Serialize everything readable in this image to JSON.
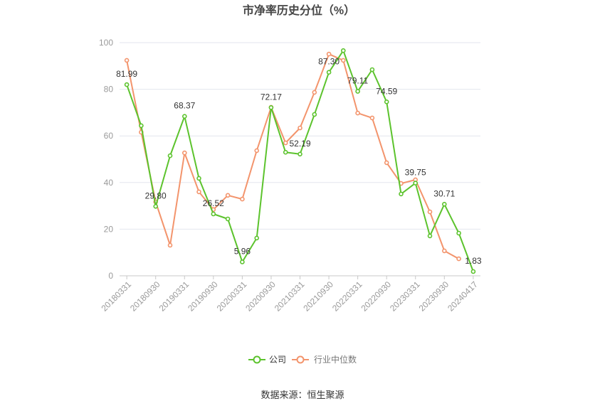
{
  "chart_data": {
    "type": "line",
    "title": "市净率历史分位（%）",
    "x_tick_labels": [
      "20180331",
      "20180930",
      "20190331",
      "20190930",
      "20200331",
      "20200930",
      "20210331",
      "20210930",
      "20220331",
      "20220930",
      "20230331",
      "20230930",
      "20240417"
    ],
    "y_ticks": [
      0,
      20,
      40,
      60,
      80,
      100
    ],
    "ylim": [
      0,
      100
    ],
    "grid": "horizontal",
    "legend_position": "bottom",
    "series": [
      {
        "name": "公司",
        "color": "#5cc32d",
        "values": [
          81.99,
          64.4,
          29.8,
          51.5,
          68.37,
          41.8,
          26.52,
          24.4,
          5.96,
          16.2,
          72.17,
          53.0,
          52.19,
          69.2,
          87.3,
          96.6,
          79.11,
          88.4,
          74.59,
          35.1,
          39.75,
          17.1,
          30.71,
          18.3,
          1.83
        ],
        "labels": [
          "81.99",
          null,
          "29.80",
          null,
          "68.37",
          null,
          "26.52",
          null,
          "5.96",
          null,
          "72.17",
          null,
          "52.19",
          null,
          "87.30",
          null,
          "79.11",
          null,
          "74.59",
          null,
          "39.75",
          null,
          "30.71",
          null,
          "1.83"
        ]
      },
      {
        "name": "行业中位数",
        "color": "#f3946c",
        "values": [
          92.4,
          61.6,
          31.7,
          13.1,
          52.7,
          36.0,
          28.4,
          34.5,
          32.9,
          53.7,
          72.3,
          57.0,
          63.4,
          78.7,
          95.1,
          92.4,
          69.8,
          67.7,
          48.5,
          39.6,
          41.2,
          27.4,
          10.7,
          7.3,
          null
        ]
      }
    ]
  },
  "source": "数据来源：恒生聚源"
}
